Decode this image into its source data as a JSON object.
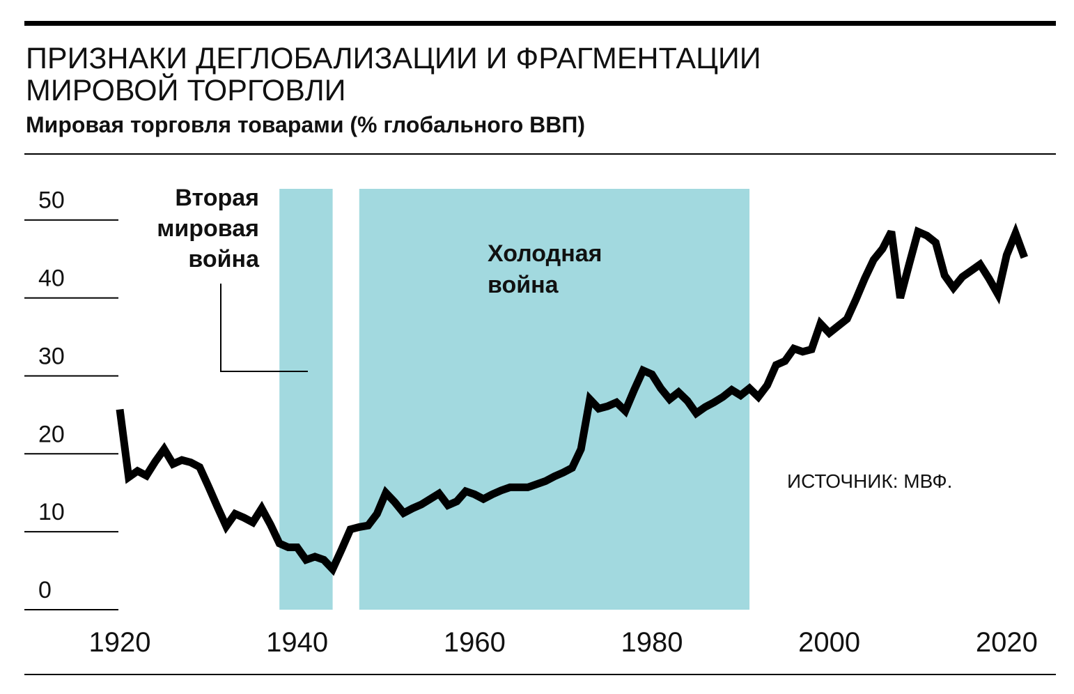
{
  "chart_data": {
    "type": "line",
    "title_lines": [
      "ПРИЗНАКИ ДЕГЛОБАЛИЗАЦИИ И ФРАГМЕНТАЦИИ",
      "МИРОВОЙ ТОРГОВЛИ"
    ],
    "subtitle": "Мировая торговля товарами (% глобального ВВП)",
    "source": "ИСТОЧНИК: МВФ.",
    "color": "#000000",
    "shade_color": "#a2d9df",
    "periods": [
      {
        "label_lines": [
          "Вторая",
          "мировая",
          "война"
        ],
        "start": 1938,
        "end": 1944
      },
      {
        "label_lines": [
          "Холодная",
          "война"
        ],
        "start": 1947,
        "end": 1991
      }
    ],
    "x": [
      1920,
      1921,
      1922,
      1923,
      1924,
      1925,
      1926,
      1927,
      1928,
      1929,
      1930,
      1931,
      1932,
      1933,
      1934,
      1935,
      1936,
      1937,
      1938,
      1939,
      1940,
      1941,
      1942,
      1943,
      1944,
      1945,
      1946,
      1947,
      1948,
      1949,
      1950,
      1951,
      1952,
      1953,
      1954,
      1955,
      1956,
      1957,
      1958,
      1959,
      1960,
      1961,
      1962,
      1963,
      1964,
      1965,
      1966,
      1967,
      1968,
      1969,
      1970,
      1971,
      1972,
      1973,
      1974,
      1975,
      1976,
      1977,
      1978,
      1979,
      1980,
      1981,
      1982,
      1983,
      1984,
      1985,
      1986,
      1987,
      1988,
      1989,
      1990,
      1991,
      1992,
      1993,
      1994,
      1995,
      1996,
      1997,
      1998,
      1999,
      2000,
      2001,
      2002,
      2003,
      2004,
      2005,
      2006,
      2007,
      2008,
      2009,
      2010,
      2011,
      2012,
      2013,
      2014,
      2015,
      2016,
      2017,
      2018,
      2019,
      2020,
      2021,
      2022
    ],
    "values": [
      25.7,
      17,
      17.8,
      17.2,
      19,
      20.6,
      18.7,
      19.2,
      18.9,
      18.3,
      15.8,
      13.2,
      10.7,
      12.3,
      11.8,
      11.2,
      13,
      10.9,
      8.5,
      8,
      8,
      6.4,
      6.8,
      6.4,
      5.2,
      7.7,
      10.3,
      10.6,
      10.8,
      12.3,
      15,
      13.8,
      12.4,
      13,
      13.5,
      14.2,
      14.9,
      13.4,
      13.9,
      15.2,
      14.8,
      14.2,
      14.8,
      15.3,
      15.7,
      15.7,
      15.7,
      16.1,
      16.5,
      17.1,
      17.6,
      18.2,
      20.6,
      27,
      25.8,
      26.1,
      26.6,
      25.5,
      28.2,
      30.7,
      30.2,
      28.4,
      27,
      27.9,
      26.8,
      25.2,
      26,
      26.6,
      27.3,
      28.2,
      27.5,
      28.4,
      27.3,
      28.8,
      31.4,
      31.9,
      33.5,
      33.1,
      33.4,
      36.7,
      35.5,
      36.4,
      37.3,
      39.8,
      42.5,
      44.9,
      46.3,
      48.5,
      40,
      44.3,
      48.5,
      48,
      47.1,
      42.9,
      41.3,
      42.7,
      43.5,
      44.3,
      42.5,
      40.5,
      45.5,
      48.3,
      45.2
    ],
    "xlim": [
      1920,
      2025
    ],
    "xticks": [
      1920,
      1940,
      1960,
      1980,
      2000,
      2020
    ],
    "ylim": [
      0,
      54
    ],
    "yticks": [
      0,
      10,
      20,
      30,
      40,
      50
    ]
  }
}
